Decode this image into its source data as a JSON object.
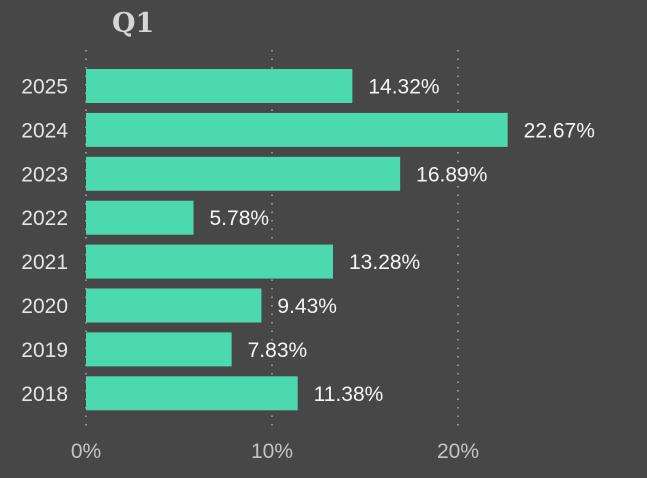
{
  "chart_data": {
    "type": "bar",
    "orientation": "horizontal",
    "title": "Q1",
    "categories": [
      "2025",
      "2024",
      "2023",
      "2022",
      "2021",
      "2020",
      "2019",
      "2018"
    ],
    "values": [
      14.32,
      22.67,
      16.89,
      5.78,
      13.28,
      9.43,
      7.83,
      11.38
    ],
    "value_labels": [
      "14.32%",
      "22.67%",
      "16.89%",
      "5.78%",
      "13.28%",
      "9.43%",
      "7.83%",
      "11.38%"
    ],
    "xlim": [
      0,
      25
    ],
    "xticks": [
      0,
      10,
      20
    ],
    "xtick_labels": [
      "0%",
      "10%",
      "20%"
    ],
    "grid": true,
    "colors": {
      "bar": "#4cd9ae",
      "background": "#474747"
    }
  }
}
